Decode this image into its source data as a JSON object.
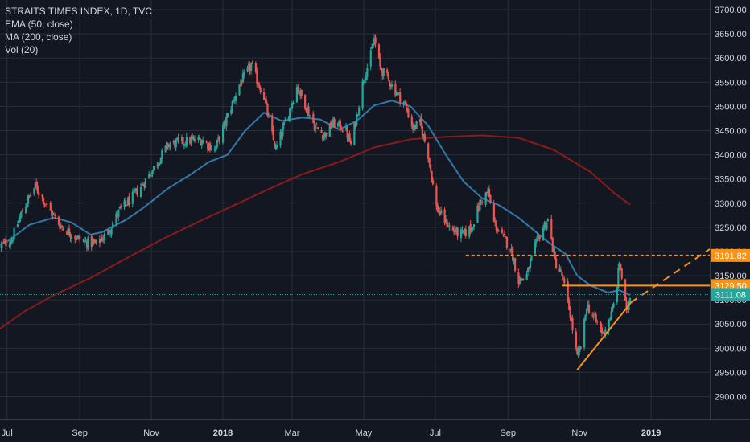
{
  "legend": {
    "title": "STRAITS TIMES INDEX, 1D, TVC",
    "ema": "EMA (50, close)",
    "ma": "MA (200, close)",
    "vol": "Vol (20)"
  },
  "colors": {
    "background": "#131722",
    "grid": "#2a2e39",
    "up": "#26a69a",
    "down": "#ef5350",
    "ema": "#3179a8",
    "ma": "#8b1a1a",
    "orange": "#f7931a",
    "last_price": "#26a69a"
  },
  "chart_data": {
    "type": "candlestick",
    "title": "STRAITS TIMES INDEX, 1D, TVC",
    "ylim": [
      2850,
      3720
    ],
    "y_ticks": [
      3700,
      3650,
      3600,
      3550,
      3500,
      3450,
      3400,
      3350,
      3300,
      3250,
      3200,
      3150,
      3100,
      3050,
      3000,
      2950,
      2900
    ],
    "y_tick_labels": [
      "3700.00",
      "3650.00",
      "3600.00",
      "3550.00",
      "3500.00",
      "3450.00",
      "3400.00",
      "3350.00",
      "3300.00",
      "3250.00",
      "3200.00",
      "3150.00",
      "3100.00",
      "3050.00",
      "3000.00",
      "2950.00",
      "2900.00"
    ],
    "x_labels": [
      {
        "label": "Jul",
        "date": "2017-07-01"
      },
      {
        "label": "Sep",
        "date": "2017-09-01"
      },
      {
        "label": "Nov",
        "date": "2017-11-01"
      },
      {
        "label": "2018",
        "date": "2018-01-01"
      },
      {
        "label": "Mar",
        "date": "2018-03-01"
      },
      {
        "label": "May",
        "date": "2018-05-01"
      },
      {
        "label": "Jul",
        "date": "2018-07-01"
      },
      {
        "label": "Sep",
        "date": "2018-09-01"
      },
      {
        "label": "Nov",
        "date": "2018-11-01"
      },
      {
        "label": "2019",
        "date": "2019-01-01"
      }
    ],
    "x_range": [
      "2017-06-25",
      "2019-02-20"
    ],
    "close_anchors": [
      [
        "2017-06-25",
        3210
      ],
      [
        "2017-07-05",
        3225
      ],
      [
        "2017-07-15",
        3290
      ],
      [
        "2017-07-25",
        3335
      ],
      [
        "2017-08-05",
        3290
      ],
      [
        "2017-08-15",
        3255
      ],
      [
        "2017-08-28",
        3230
      ],
      [
        "2017-09-05",
        3220
      ],
      [
        "2017-09-15",
        3215
      ],
      [
        "2017-09-25",
        3240
      ],
      [
        "2017-10-05",
        3285
      ],
      [
        "2017-10-15",
        3310
      ],
      [
        "2017-10-25",
        3340
      ],
      [
        "2017-11-05",
        3380
      ],
      [
        "2017-11-15",
        3420
      ],
      [
        "2017-11-25",
        3425
      ],
      [
        "2017-12-05",
        3430
      ],
      [
        "2017-12-15",
        3430
      ],
      [
        "2017-12-25",
        3410
      ],
      [
        "2018-01-05",
        3480
      ],
      [
        "2018-01-15",
        3545
      ],
      [
        "2018-01-25",
        3585
      ],
      [
        "2018-02-05",
        3520
      ],
      [
        "2018-02-10",
        3460
      ],
      [
        "2018-02-15",
        3410
      ],
      [
        "2018-02-25",
        3480
      ],
      [
        "2018-03-05",
        3540
      ],
      [
        "2018-03-12",
        3505
      ],
      [
        "2018-03-20",
        3460
      ],
      [
        "2018-03-28",
        3440
      ],
      [
        "2018-04-05",
        3465
      ],
      [
        "2018-04-15",
        3455
      ],
      [
        "2018-04-20",
        3420
      ],
      [
        "2018-04-25",
        3480
      ],
      [
        "2018-05-01",
        3560
      ],
      [
        "2018-05-06",
        3595
      ],
      [
        "2018-05-10",
        3640
      ],
      [
        "2018-05-15",
        3580
      ],
      [
        "2018-05-22",
        3555
      ],
      [
        "2018-05-30",
        3525
      ],
      [
        "2018-06-05",
        3505
      ],
      [
        "2018-06-12",
        3455
      ],
      [
        "2018-06-18",
        3465
      ],
      [
        "2018-06-25",
        3400
      ],
      [
        "2018-07-02",
        3290
      ],
      [
        "2018-07-10",
        3260
      ],
      [
        "2018-07-17",
        3240
      ],
      [
        "2018-07-25",
        3235
      ],
      [
        "2018-08-01",
        3250
      ],
      [
        "2018-08-08",
        3300
      ],
      [
        "2018-08-15",
        3325
      ],
      [
        "2018-08-20",
        3260
      ],
      [
        "2018-08-27",
        3230
      ],
      [
        "2018-09-03",
        3210
      ],
      [
        "2018-09-10",
        3140
      ],
      [
        "2018-09-17",
        3150
      ],
      [
        "2018-09-24",
        3210
      ],
      [
        "2018-10-01",
        3250
      ],
      [
        "2018-10-05",
        3265
      ],
      [
        "2018-10-11",
        3180
      ],
      [
        "2018-10-17",
        3150
      ],
      [
        "2018-10-24",
        3070
      ],
      [
        "2018-10-30",
        2980
      ],
      [
        "2018-11-03",
        3010
      ],
      [
        "2018-11-07",
        3090
      ],
      [
        "2018-11-14",
        3060
      ],
      [
        "2018-11-21",
        3030
      ],
      [
        "2018-11-28",
        3070
      ],
      [
        "2018-12-02",
        3110
      ],
      [
        "2018-12-05",
        3180
      ],
      [
        "2018-12-08",
        3130
      ],
      [
        "2018-12-11",
        3070
      ],
      [
        "2018-12-14",
        3111
      ]
    ],
    "ema50_points": [
      [
        "2017-07-01",
        3220
      ],
      [
        "2017-07-20",
        3255
      ],
      [
        "2017-08-10",
        3270
      ],
      [
        "2017-08-25",
        3260
      ],
      [
        "2017-09-10",
        3235
      ],
      [
        "2017-09-20",
        3240
      ],
      [
        "2017-10-10",
        3265
      ],
      [
        "2017-10-25",
        3290
      ],
      [
        "2017-11-15",
        3330
      ],
      [
        "2017-12-05",
        3360
      ],
      [
        "2017-12-20",
        3385
      ],
      [
        "2018-01-05",
        3400
      ],
      [
        "2018-01-20",
        3450
      ],
      [
        "2018-02-05",
        3487
      ],
      [
        "2018-02-20",
        3470
      ],
      [
        "2018-03-10",
        3477
      ],
      [
        "2018-03-25",
        3473
      ],
      [
        "2018-04-10",
        3452
      ],
      [
        "2018-04-25",
        3470
      ],
      [
        "2018-05-10",
        3502
      ],
      [
        "2018-05-25",
        3512
      ],
      [
        "2018-06-10",
        3500
      ],
      [
        "2018-06-25",
        3460
      ],
      [
        "2018-07-10",
        3400
      ],
      [
        "2018-07-25",
        3345
      ],
      [
        "2018-08-10",
        3310
      ],
      [
        "2018-08-25",
        3295
      ],
      [
        "2018-09-10",
        3270
      ],
      [
        "2018-09-25",
        3240
      ],
      [
        "2018-10-05",
        3220
      ],
      [
        "2018-10-20",
        3195
      ],
      [
        "2018-10-30",
        3150
      ],
      [
        "2018-11-10",
        3130
      ],
      [
        "2018-11-25",
        3115
      ],
      [
        "2018-12-05",
        3120
      ],
      [
        "2018-12-14",
        3110
      ]
    ],
    "ma200_points": [
      [
        "2017-06-25",
        3040
      ],
      [
        "2017-07-15",
        3075
      ],
      [
        "2017-08-10",
        3110
      ],
      [
        "2017-09-10",
        3145
      ],
      [
        "2017-10-10",
        3185
      ],
      [
        "2017-11-10",
        3225
      ],
      [
        "2017-12-10",
        3260
      ],
      [
        "2018-01-10",
        3295
      ],
      [
        "2018-02-10",
        3330
      ],
      [
        "2018-03-10",
        3360
      ],
      [
        "2018-04-10",
        3385
      ],
      [
        "2018-05-10",
        3415
      ],
      [
        "2018-06-10",
        3432
      ],
      [
        "2018-07-10",
        3437
      ],
      [
        "2018-08-10",
        3440
      ],
      [
        "2018-09-10",
        3435
      ],
      [
        "2018-10-10",
        3410
      ],
      [
        "2018-11-10",
        3365
      ],
      [
        "2018-12-01",
        3320
      ],
      [
        "2018-12-14",
        3297
      ]
    ],
    "lines": [
      {
        "name": "resistance_dashed",
        "from": [
          "2018-07-27",
          3191.82
        ],
        "to": [
          "2019-02-20",
          3191.82
        ],
        "style": "dashed",
        "color": "orange"
      },
      {
        "name": "resistance_solid",
        "from": [
          "2018-10-17",
          3129.5
        ],
        "to": [
          "2019-02-20",
          3129.5
        ],
        "style": "solid",
        "color": "orange"
      },
      {
        "name": "trendline_solid",
        "from": [
          "2018-10-30",
          2955
        ],
        "to": [
          "2018-12-15",
          3095
        ],
        "style": "solid",
        "color": "orange"
      },
      {
        "name": "trendline_dashed",
        "from": [
          "2018-12-15",
          3095
        ],
        "to": [
          "2019-02-20",
          3205
        ],
        "style": "dashed",
        "color": "orange"
      },
      {
        "name": "last_price",
        "from": [
          "2017-06-25",
          3111.08
        ],
        "to": [
          "2019-02-20",
          3111.08
        ],
        "style": "dotted",
        "color": "last_price"
      }
    ],
    "price_labels": [
      {
        "value": 3191.82,
        "text": "3191.82",
        "color": "orange"
      },
      {
        "value": 3129.5,
        "text": "3129.50",
        "color": "orange"
      },
      {
        "value": 3111.08,
        "text": "3111.08",
        "color": "last_price"
      }
    ],
    "last": 3111.08
  }
}
